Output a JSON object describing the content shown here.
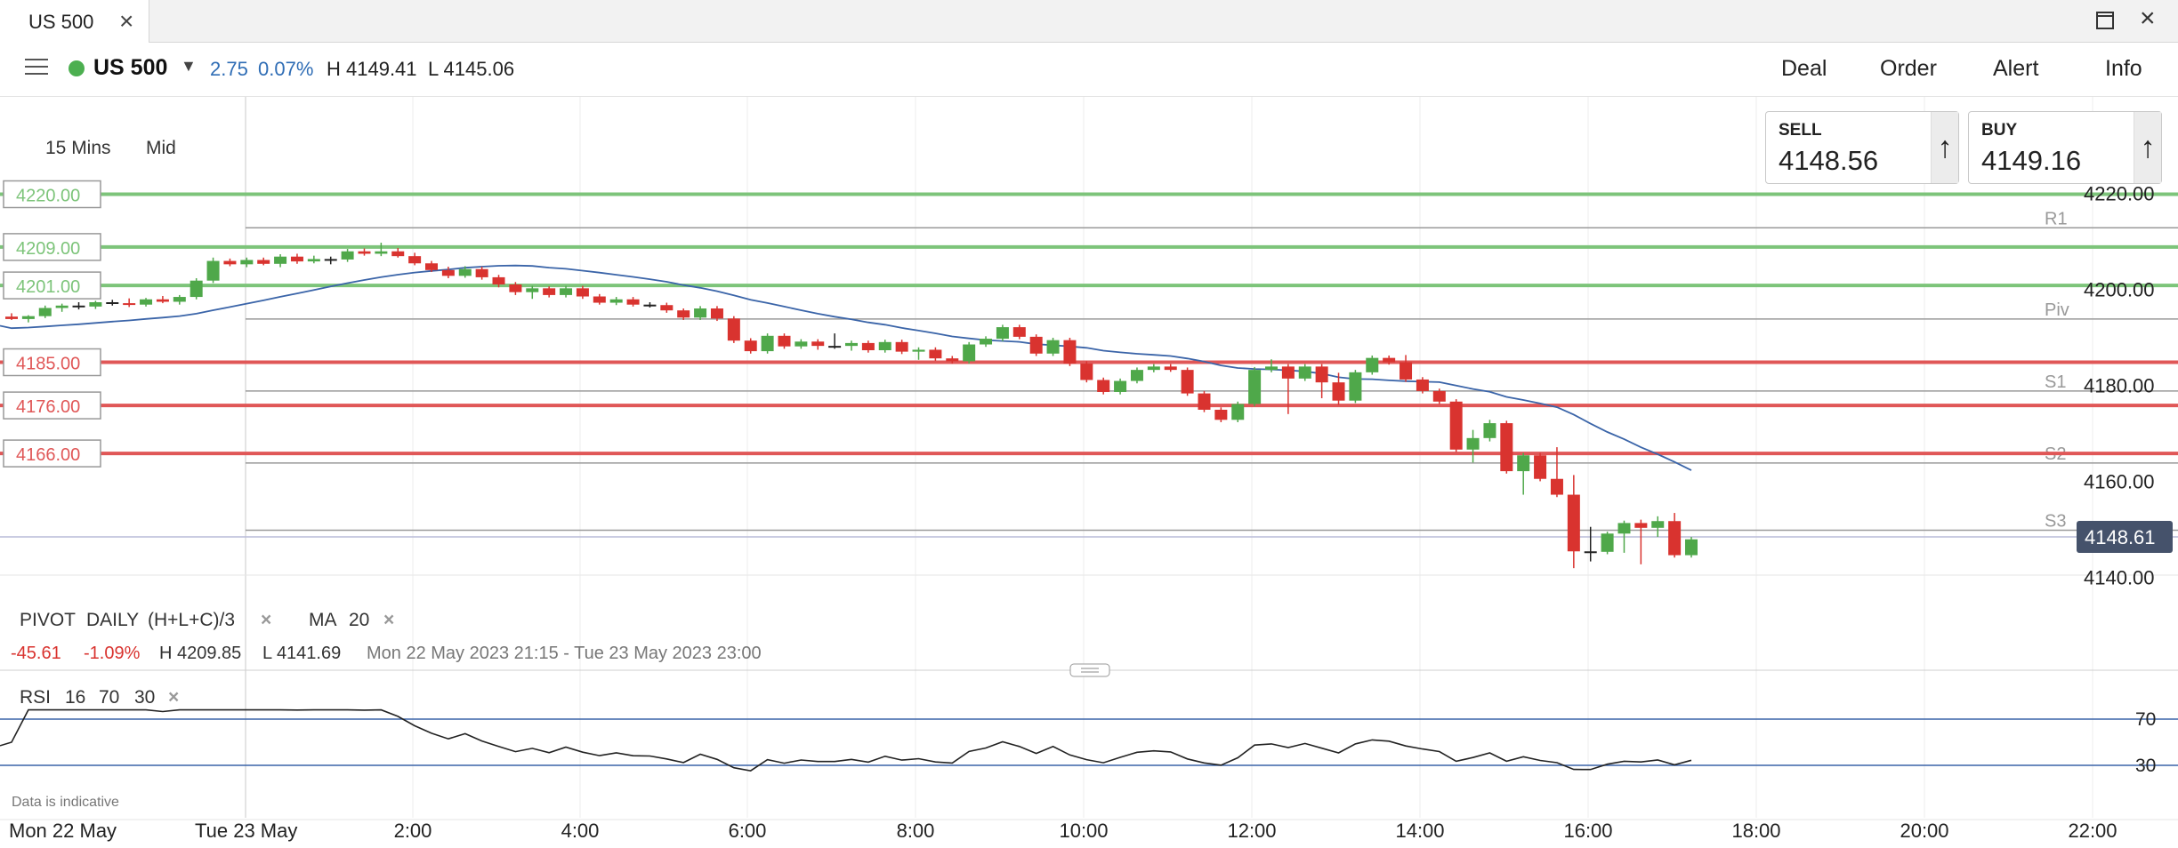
{
  "tab": {
    "title": "US 500"
  },
  "window": {
    "maximize_icon": "maximize-icon",
    "close_icon": "close-icon"
  },
  "header": {
    "symbol": "US 500",
    "change": "2.75",
    "change_pct": "0.07%",
    "high": "H 4149.41",
    "low": "L 4145.06",
    "nav": [
      "Deal",
      "Order",
      "Alert",
      "Info"
    ]
  },
  "chart_controls": {
    "timeframe": "15 Mins",
    "price_type": "Mid"
  },
  "tickets": {
    "sell": {
      "label": "SELL",
      "price": "4148.56"
    },
    "buy": {
      "label": "BUY",
      "price": "4149.16"
    }
  },
  "colors": {
    "up": "#4fa84a",
    "down": "#d9332f",
    "ma": "#3a64a8",
    "current": "#45526b",
    "resistance": "#7dc47a",
    "support": "#e05757"
  },
  "levels_left": [
    {
      "label": "4220.00",
      "value": 4220,
      "kind": "resistance"
    },
    {
      "label": "4209.00",
      "value": 4209,
      "kind": "resistance"
    },
    {
      "label": "4201.00",
      "value": 4201,
      "kind": "resistance"
    },
    {
      "label": "4185.00",
      "value": 4185,
      "kind": "support"
    },
    {
      "label": "4176.00",
      "value": 4176,
      "kind": "support"
    },
    {
      "label": "4166.00",
      "value": 4166,
      "kind": "support"
    }
  ],
  "pivots": [
    {
      "label": "R1",
      "value": 4213
    },
    {
      "label": "Piv",
      "value": 4194
    },
    {
      "label": "S1",
      "value": 4179
    },
    {
      "label": "S2",
      "value": 4164
    },
    {
      "label": "S3",
      "value": 4150
    }
  ],
  "current_price": {
    "label": "4148.61",
    "value": 4148.61
  },
  "indicators": {
    "pivot": {
      "name": "PIVOT",
      "period": "DAILY",
      "formula": "(H+L+C)/3"
    },
    "ma": {
      "name": "MA",
      "period": "20"
    },
    "rsi": {
      "name": "RSI",
      "period": "16",
      "upper": "70",
      "lower": "30"
    }
  },
  "stats": {
    "change": "-45.61",
    "change_pct": "-1.09%",
    "high": "H 4209.85",
    "low": "L 4141.69",
    "range": "Mon 22 May 2023 21:15 - Tue 23 May 2023 23:00"
  },
  "footer": {
    "note": "Data is indicative"
  },
  "chart_data": {
    "type": "candlestick",
    "x_axis_labels": [
      "Mon 22 May",
      "Tue 23 May",
      "2:00",
      "4:00",
      "6:00",
      "8:00",
      "10:00",
      "12:00",
      "14:00",
      "16:00",
      "18:00",
      "20:00",
      "22:00"
    ],
    "y_axis_labels": [
      "4220.00",
      "4200.00",
      "4180.00",
      "4160.00",
      "4140.00"
    ],
    "ylim": [
      4134,
      4229
    ],
    "rsi_levels": [
      "70",
      "30"
    ],
    "candles": [
      [
        4194.5,
        4195.2,
        4193.8,
        4194.0
      ],
      [
        4194.0,
        4194.8,
        4193.3,
        4194.6
      ],
      [
        4194.6,
        4196.8,
        4194.2,
        4196.3
      ],
      [
        4196.3,
        4197.2,
        4195.5,
        4196.8
      ],
      [
        4196.8,
        4197.5,
        4196.0,
        4196.6
      ],
      [
        4196.6,
        4197.8,
        4196.1,
        4197.5
      ],
      [
        4197.5,
        4198.0,
        4196.8,
        4197.3
      ],
      [
        4197.3,
        4198.3,
        4196.5,
        4197.0
      ],
      [
        4197.0,
        4198.4,
        4196.6,
        4198.1
      ],
      [
        4198.1,
        4198.8,
        4197.3,
        4197.6
      ],
      [
        4197.6,
        4199.0,
        4197.0,
        4198.6
      ],
      [
        4198.6,
        4202.5,
        4198.1,
        4202.0
      ],
      [
        4202.0,
        4206.8,
        4201.5,
        4206.1
      ],
      [
        4206.1,
        4206.6,
        4205.0,
        4205.4
      ],
      [
        4205.4,
        4206.8,
        4204.8,
        4206.3
      ],
      [
        4206.3,
        4206.8,
        4205.2,
        4205.5
      ],
      [
        4205.5,
        4207.5,
        4204.8,
        4207.0
      ],
      [
        4207.0,
        4207.6,
        4205.5,
        4206.0
      ],
      [
        4206.0,
        4207.2,
        4205.6,
        4206.5
      ],
      [
        4206.5,
        4207.0,
        4205.4,
        4206.4
      ],
      [
        4206.4,
        4208.6,
        4205.9,
        4208.1
      ],
      [
        4208.1,
        4208.7,
        4207.2,
        4207.6
      ],
      [
        4207.6,
        4209.9,
        4207.1,
        4208.1
      ],
      [
        4208.1,
        4208.8,
        4206.8,
        4207.1
      ],
      [
        4207.1,
        4207.8,
        4205.2,
        4205.6
      ],
      [
        4205.6,
        4206.1,
        4203.8,
        4204.2
      ],
      [
        4204.2,
        4204.9,
        4202.5,
        4203.0
      ],
      [
        4203.0,
        4205.0,
        4202.6,
        4204.4
      ],
      [
        4204.4,
        4204.9,
        4202.2,
        4202.7
      ],
      [
        4202.7,
        4203.2,
        4200.6,
        4201.2
      ],
      [
        4201.2,
        4201.7,
        4199.0,
        4199.6
      ],
      [
        4199.6,
        4200.9,
        4198.2,
        4200.4
      ],
      [
        4200.4,
        4200.8,
        4198.5,
        4199.0
      ],
      [
        4199.0,
        4200.9,
        4198.5,
        4200.4
      ],
      [
        4200.4,
        4200.9,
        4198.2,
        4198.7
      ],
      [
        4198.7,
        4199.2,
        4197.0,
        4197.4
      ],
      [
        4197.4,
        4198.6,
        4196.9,
        4198.1
      ],
      [
        4198.1,
        4198.6,
        4196.6,
        4197.0
      ],
      [
        4197.0,
        4197.5,
        4196.4,
        4196.9
      ],
      [
        4196.9,
        4197.4,
        4195.3,
        4195.8
      ],
      [
        4195.8,
        4196.2,
        4193.8,
        4194.3
      ],
      [
        4194.3,
        4196.7,
        4193.8,
        4196.2
      ],
      [
        4196.2,
        4196.7,
        4193.6,
        4194.1
      ],
      [
        4194.1,
        4194.6,
        4189.0,
        4189.5
      ],
      [
        4189.5,
        4190.0,
        4186.8,
        4187.3
      ],
      [
        4187.3,
        4191.0,
        4186.8,
        4190.5
      ],
      [
        4190.5,
        4191.0,
        4187.8,
        4188.3
      ],
      [
        4188.3,
        4189.8,
        4187.8,
        4189.3
      ],
      [
        4189.3,
        4189.8,
        4187.6,
        4188.4
      ],
      [
        4188.4,
        4191.0,
        4187.8,
        4188.4
      ],
      [
        4188.4,
        4189.5,
        4187.4,
        4189.0
      ],
      [
        4189.0,
        4189.5,
        4187.0,
        4187.5
      ],
      [
        4187.5,
        4189.7,
        4187.0,
        4189.2
      ],
      [
        4189.2,
        4189.7,
        4186.7,
        4187.2
      ],
      [
        4187.2,
        4188.1,
        4185.5,
        4187.6
      ],
      [
        4187.6,
        4188.1,
        4185.3,
        4185.8
      ],
      [
        4185.8,
        4186.3,
        4184.7,
        4185.2
      ],
      [
        4185.2,
        4189.2,
        4184.7,
        4188.7
      ],
      [
        4188.7,
        4190.4,
        4188.2,
        4189.9
      ],
      [
        4189.9,
        4192.8,
        4189.4,
        4192.3
      ],
      [
        4192.3,
        4192.8,
        4189.8,
        4190.3
      ],
      [
        4190.3,
        4190.8,
        4186.3,
        4186.8
      ],
      [
        4186.8,
        4190.1,
        4186.3,
        4189.6
      ],
      [
        4189.6,
        4190.1,
        4184.2,
        4184.7
      ],
      [
        4184.7,
        4185.2,
        4180.8,
        4181.3
      ],
      [
        4181.3,
        4181.8,
        4178.3,
        4178.8
      ],
      [
        4178.8,
        4181.6,
        4178.3,
        4181.1
      ],
      [
        4181.1,
        4183.9,
        4180.6,
        4183.4
      ],
      [
        4183.4,
        4184.6,
        4182.9,
        4184.1
      ],
      [
        4184.1,
        4184.6,
        4183.0,
        4183.4
      ],
      [
        4183.4,
        4183.9,
        4178.0,
        4178.5
      ],
      [
        4178.5,
        4179.0,
        4174.6,
        4175.1
      ],
      [
        4175.1,
        4175.6,
        4172.5,
        4173.0
      ],
      [
        4173.0,
        4176.8,
        4172.5,
        4176.3
      ],
      [
        4176.3,
        4184.0,
        4175.8,
        4183.4
      ],
      [
        4183.4,
        4185.6,
        4182.9,
        4184.1
      ],
      [
        4184.1,
        4184.6,
        4174.2,
        4181.6
      ],
      [
        4181.6,
        4184.6,
        4181.1,
        4184.1
      ],
      [
        4184.1,
        4184.6,
        4177.5,
        4180.8
      ],
      [
        4180.8,
        4182.8,
        4176.1,
        4177.0
      ],
      [
        4177.0,
        4183.4,
        4176.5,
        4182.9
      ],
      [
        4182.9,
        4186.4,
        4182.4,
        4185.9
      ],
      [
        4185.9,
        4186.4,
        4184.5,
        4185.0
      ],
      [
        4185.0,
        4186.5,
        4180.9,
        4181.4
      ],
      [
        4181.4,
        4181.9,
        4178.5,
        4179.0
      ],
      [
        4179.0,
        4179.5,
        4176.3,
        4176.8
      ],
      [
        4176.8,
        4177.3,
        4166.3,
        4166.8
      ],
      [
        4166.8,
        4170.9,
        4164.1,
        4169.2
      ],
      [
        4169.2,
        4173.0,
        4168.5,
        4172.3
      ],
      [
        4172.3,
        4172.8,
        4161.8,
        4162.3
      ],
      [
        4162.3,
        4166.1,
        4157.4,
        4165.6
      ],
      [
        4165.6,
        4166.1,
        4160.2,
        4160.7
      ],
      [
        4160.7,
        4167.3,
        4156.9,
        4157.4
      ],
      [
        4157.4,
        4161.5,
        4142.1,
        4145.6
      ],
      [
        4145.6,
        4150.7,
        4143.5,
        4145.5
      ],
      [
        4145.5,
        4149.7,
        4145.0,
        4149.3
      ],
      [
        4149.3,
        4152.0,
        4145.3,
        4151.5
      ],
      [
        4151.5,
        4152.2,
        4142.9,
        4150.5
      ],
      [
        4150.5,
        4152.9,
        4148.6,
        4151.9
      ],
      [
        4151.9,
        4153.6,
        4144.3,
        4144.8
      ],
      [
        4144.8,
        4148.6,
        4144.3,
        4148.1
      ]
    ]
  }
}
